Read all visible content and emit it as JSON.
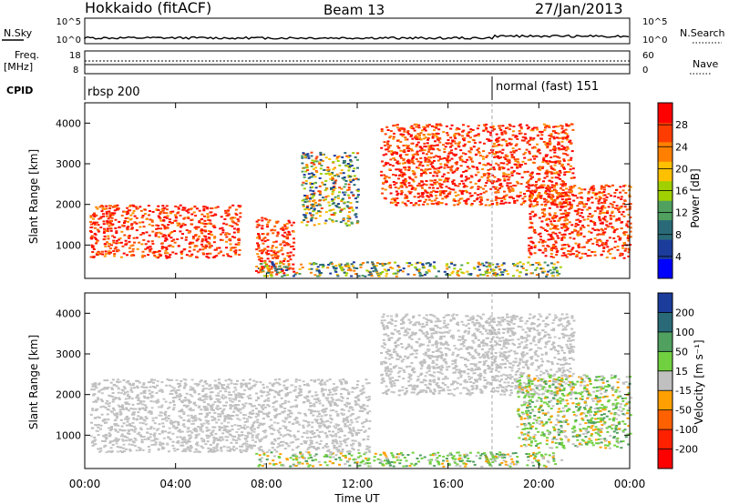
{
  "header": {
    "station": "Hokkaido (fitACF)",
    "beam": "Beam 13",
    "date": "27/Jan/2013"
  },
  "top_panels": {
    "nsky_label": "N.Sky",
    "nsearch_label": "N.Search",
    "nsky_ticks": [
      "10^5",
      "10^0"
    ],
    "nsearch_ticks": [
      "10^5",
      "10^0"
    ],
    "freq_label": "Freq.",
    "freq_unit": "[MHz]",
    "freq_ticks": [
      "18",
      "8"
    ],
    "nave_label": "Nave",
    "nave_ticks": [
      "60",
      "0"
    ],
    "cpid_label": "CPID",
    "cpid_modes": [
      {
        "label": "rbsp 200"
      },
      {
        "label": "normal (fast) 151"
      }
    ]
  },
  "chart_data": [
    {
      "type": "heatmap",
      "name": "power-panel",
      "ylabel": "Slant Range [km]",
      "yticks": [
        "1000",
        "2000",
        "3000",
        "4000"
      ],
      "ylim": [
        180,
        4500
      ],
      "xlim_hours": [
        0,
        24
      ],
      "colorbar_label": "Power [dB]",
      "colorbar_ticks": [
        "28",
        "24",
        "20",
        "16",
        "12",
        "8",
        "4"
      ],
      "colorbar_colors": [
        "#ff0000",
        "#ff3c00",
        "#ff8000",
        "#ffc000",
        "#a0d000",
        "#50a060",
        "#2a6a78",
        "#1c3c9c",
        "#0000ff"
      ],
      "regions": [
        {
          "t": [
            0.2,
            6.8
          ],
          "r": [
            700,
            2000
          ],
          "level": "high"
        },
        {
          "t": [
            7.5,
            9.2
          ],
          "r": [
            300,
            1700
          ],
          "level": "high"
        },
        {
          "t": [
            9.5,
            12.0
          ],
          "r": [
            1500,
            3300
          ],
          "level": "mid"
        },
        {
          "t": [
            13.0,
            21.5
          ],
          "r": [
            2000,
            4000
          ],
          "level": "high"
        },
        {
          "t": [
            19.5,
            24
          ],
          "r": [
            700,
            2500
          ],
          "level": "high"
        },
        {
          "t": [
            7.5,
            21.0
          ],
          "r": [
            250,
            600
          ],
          "level": "low"
        }
      ]
    },
    {
      "type": "heatmap",
      "name": "velocity-panel",
      "ylabel": "Slant Range [km]",
      "yticks": [
        "1000",
        "2000",
        "3000",
        "4000"
      ],
      "ylim": [
        180,
        4500
      ],
      "xlim_hours": [
        0,
        24
      ],
      "colorbar_label": "Velocity [m s⁻¹]",
      "colorbar_ticks": [
        "200",
        "100",
        "50",
        "15",
        "-15",
        "-50",
        "-100",
        "-200"
      ],
      "colorbar_colors": [
        "#1c3c9c",
        "#2a6a78",
        "#50a060",
        "#70d040",
        "#c0c0c0",
        "#ffa000",
        "#ff6000",
        "#ff2000",
        "#ff0000"
      ],
      "regions": [
        {
          "t": [
            0.2,
            12.5
          ],
          "r": [
            600,
            2400
          ],
          "level": "ground"
        },
        {
          "t": [
            13.0,
            21.5
          ],
          "r": [
            2000,
            4000
          ],
          "level": "ground"
        },
        {
          "t": [
            19.0,
            24
          ],
          "r": [
            700,
            2500
          ],
          "level": "positive"
        },
        {
          "t": [
            7.5,
            21.0
          ],
          "r": [
            250,
            600
          ],
          "level": "positive"
        }
      ]
    }
  ],
  "xaxis": {
    "ticks": [
      "00:00",
      "04:00",
      "08:00",
      "12:00",
      "16:00",
      "20:00",
      "00:00"
    ],
    "title": "Time UT"
  }
}
